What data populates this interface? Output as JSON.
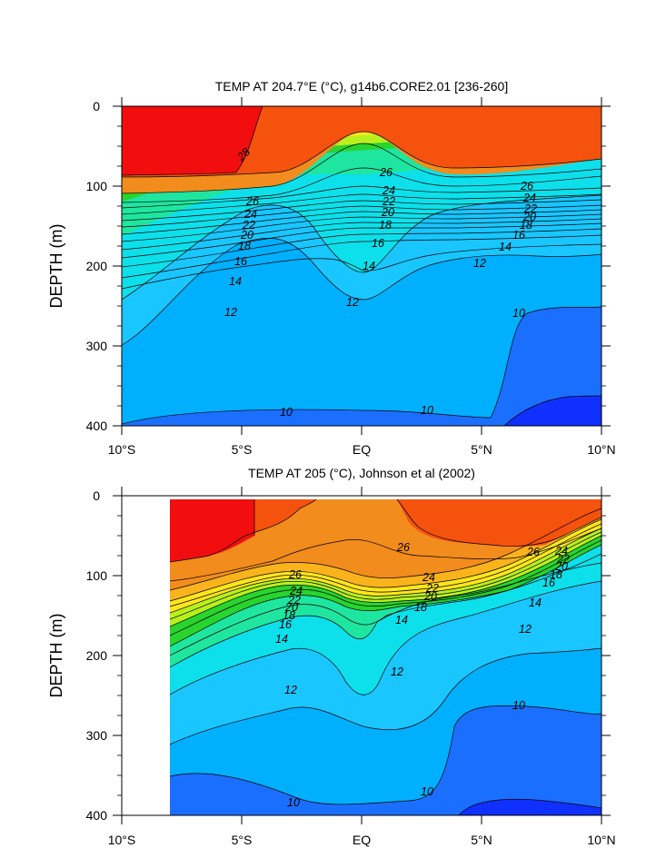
{
  "chart_data": [
    {
      "type": "heatmap",
      "title": "TEMP AT 204.7°E (°C), g14b6.CORE2.01 [236-260]",
      "ylabel": "DEPTH (m)",
      "xlabel": "",
      "xlim": [
        -10,
        10
      ],
      "ylim": [
        400,
        0
      ],
      "x_ticks": [
        "10°S",
        "5°S",
        "EQ",
        "5°N",
        "10°N"
      ],
      "y_ticks": [
        "0",
        "100",
        "200",
        "300",
        "400"
      ],
      "contour_labels": [
        "28",
        "26",
        "24",
        "22",
        "20",
        "18",
        "16",
        "14",
        "12",
        "10",
        "26",
        "24",
        "22",
        "20",
        "18",
        "16",
        "14",
        "12",
        "10",
        "16",
        "14",
        "12",
        "10"
      ],
      "colors": {
        "hot": "#f20e0e",
        "warm": "#f5520e",
        "orange": "#f28c1c",
        "yellow": "#ffe61c",
        "green": "#28d42e",
        "cyan": "#0de0ea",
        "lightblue": "#00b0ff",
        "blue": "#1b6fff",
        "deepblue": "#1030ff"
      }
    },
    {
      "type": "heatmap",
      "title": "TEMP AT 205 (°C), Johnson et al (2002)",
      "ylabel": "DEPTH (m)",
      "xlabel": "",
      "xlim": [
        -10,
        10
      ],
      "ylim": [
        400,
        0
      ],
      "x_ticks": [
        "10°S",
        "5°S",
        "EQ",
        "5°N",
        "10°N"
      ],
      "y_ticks": [
        "0",
        "100",
        "200",
        "300",
        "400"
      ],
      "contour_labels": [
        "26",
        "24",
        "22",
        "20",
        "18",
        "16",
        "14",
        "12",
        "26",
        "24",
        "22",
        "20",
        "18",
        "14",
        "12",
        "10",
        "26",
        "24",
        "22",
        "20",
        "18",
        "16",
        "14",
        "12",
        "10"
      ]
    }
  ]
}
